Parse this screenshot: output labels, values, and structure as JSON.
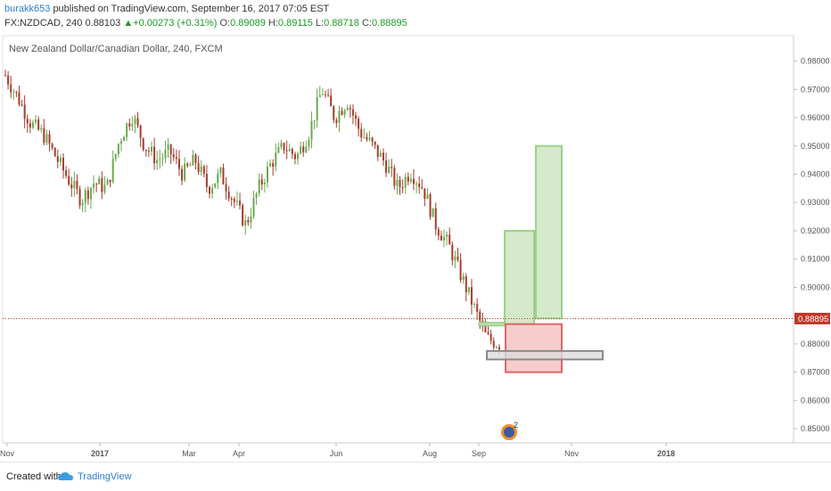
{
  "header": {
    "author": "burakk653",
    "published_text": "published on TradingView.com, September 16, 2017 07:05 EST",
    "symbol": "FX:NZDCAD, 240",
    "last": "0.88103",
    "change": "+0.00273 (+0.31%)",
    "open_label": "O:",
    "open_value": "0.89089",
    "high_label": "H:",
    "high_value": "0.89115",
    "low_label": "L:",
    "low_value": "0.88718",
    "close_label": "C:",
    "close_value": "0.88895"
  },
  "footer": {
    "created_with": "Created with",
    "brand": "TradingView"
  },
  "chart_data": {
    "type": "candlestick",
    "title": "New Zealand Dollar/Canadian Dollar, 240, FXCM",
    "ylim": [
      0.845,
      0.989
    ],
    "y_ticks": [
      "0.98000",
      "0.97000",
      "0.96000",
      "0.95000",
      "0.94000",
      "0.93000",
      "0.92000",
      "0.91000",
      "0.90000",
      "0.88000",
      "0.87000",
      "0.86000",
      "0.85000"
    ],
    "x_ticks": [
      "Nov",
      "2017",
      "Mar",
      "Apr",
      "Jun",
      "Aug",
      "Sep",
      "Nov",
      "2018"
    ],
    "last_price_label": "0.88895",
    "event_marker_count": "2",
    "colors": {
      "up": "#6aa84f",
      "down": "#a63c2c",
      "price_line": "#c0392b",
      "profit": "#b7dca8",
      "loss": "#f2b8b5",
      "neutral": "#bfbfbf"
    },
    "close_path": [
      [
        "Nov",
        0.975
      ],
      [
        "Nov",
        0.967
      ],
      [
        "Nov",
        0.958
      ],
      [
        "Nov",
        0.954
      ],
      [
        "Nov",
        0.946
      ],
      [
        "2017",
        0.938
      ],
      [
        "2017",
        0.931
      ],
      [
        "2017",
        0.937
      ],
      [
        "2017",
        0.935
      ],
      [
        "2017",
        0.952
      ],
      [
        "2017",
        0.961
      ],
      [
        "2017",
        0.95
      ],
      [
        "2017",
        0.945
      ],
      [
        "Mar",
        0.948
      ],
      [
        "Mar",
        0.94
      ],
      [
        "Mar",
        0.945
      ],
      [
        "Mar",
        0.935
      ],
      [
        "Apr",
        0.94
      ],
      [
        "Apr",
        0.931
      ],
      [
        "Apr",
        0.922
      ],
      [
        "Apr",
        0.935
      ],
      [
        "Apr",
        0.944
      ],
      [
        "Apr",
        0.95
      ],
      [
        "Jun",
        0.946
      ],
      [
        "Jun",
        0.955
      ],
      [
        "Jun",
        0.97
      ],
      [
        "Jun",
        0.96
      ],
      [
        "Jun",
        0.966
      ],
      [
        "Jun",
        0.955
      ],
      [
        "Jun",
        0.95
      ],
      [
        "Jun",
        0.944
      ],
      [
        "Jun",
        0.935
      ],
      [
        "Aug",
        0.941
      ],
      [
        "Aug",
        0.935
      ],
      [
        "Aug",
        0.922
      ],
      [
        "Aug",
        0.915
      ],
      [
        "Aug",
        0.904
      ],
      [
        "Sep",
        0.893
      ],
      [
        "Sep",
        0.882
      ],
      [
        "Sep",
        0.88
      ]
    ],
    "positions": [
      {
        "kind": "long",
        "entry": 0.887,
        "target": 0.92,
        "stop": 0.87
      },
      {
        "kind": "long",
        "entry": 0.889,
        "target": 0.95,
        "stop": 0.87
      },
      {
        "kind": "range-box",
        "top": 0.8775,
        "bottom": 0.8745
      }
    ]
  }
}
